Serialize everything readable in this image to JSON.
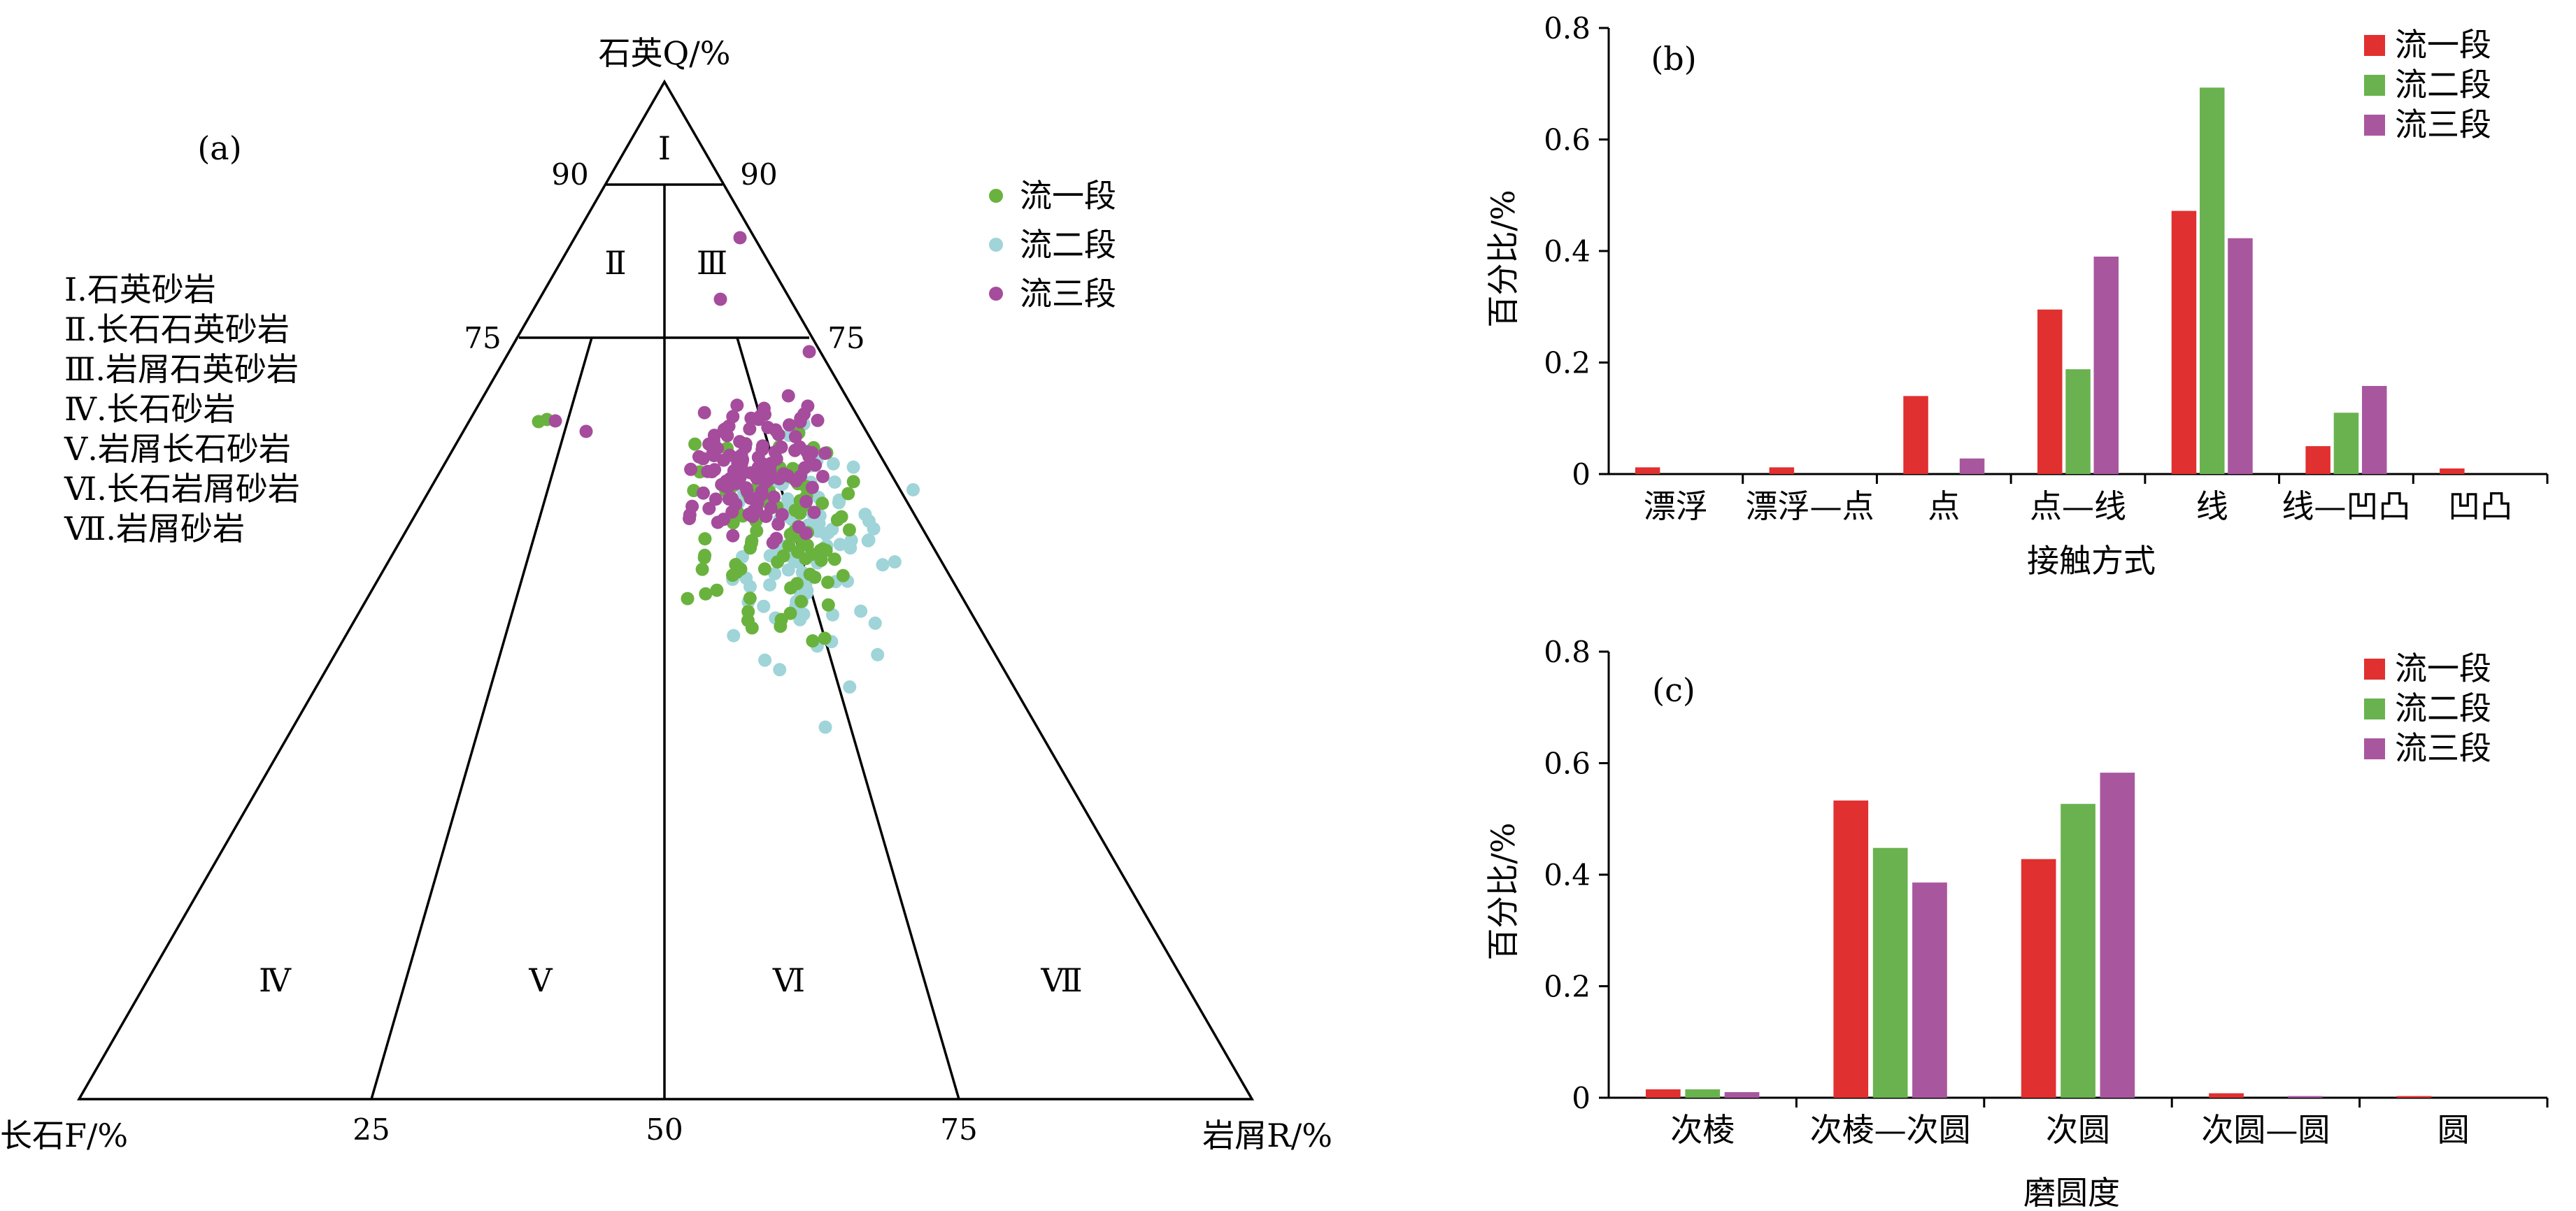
{
  "ternary": {
    "label": "(a)",
    "apex_top": "石英Q/%",
    "apex_left": "长石F/%",
    "apex_right": "岩屑R/%",
    "ticks": {
      "q90_left": "90",
      "q90_right": "90",
      "q75_left": "75",
      "q75_right": "75",
      "b25": "25",
      "b50": "50",
      "b75": "75"
    },
    "regions": [
      "Ⅰ",
      "Ⅱ",
      "Ⅲ",
      "Ⅳ",
      "Ⅴ",
      "Ⅵ",
      "Ⅶ"
    ],
    "classification_legend": [
      "Ⅰ.石英砂岩",
      "Ⅱ.长石石英砂岩",
      "Ⅲ.岩屑石英砂岩",
      "Ⅳ.长石砂岩",
      "Ⅴ.岩屑长石砂岩",
      "Ⅵ.长石岩屑砂岩",
      "Ⅶ.岩屑砂岩"
    ],
    "legend": [
      "流一段",
      "流二段",
      "流三段"
    ],
    "colors": {
      "s1": "#6ab23e",
      "s2": "#9fd4d8",
      "s3": "#a54c9c"
    }
  },
  "chart_data": [
    {
      "type": "bar",
      "panel": "(b)",
      "categories": [
        "漂浮",
        "漂浮—点",
        "点",
        "点—线",
        "线",
        "线—凹凸",
        "凹凸"
      ],
      "series": [
        {
          "name": "流一段",
          "color": "#e03030",
          "values": [
            0.012,
            0.012,
            0.14,
            0.295,
            0.472,
            0.05,
            0.01
          ]
        },
        {
          "name": "流二段",
          "color": "#6ab24f",
          "values": [
            0,
            0,
            0,
            0.188,
            0.693,
            0.11,
            0
          ]
        },
        {
          "name": "流三段",
          "color": "#a8579f",
          "values": [
            0,
            0,
            0.028,
            0.39,
            0.423,
            0.158,
            0
          ]
        }
      ],
      "xlabel": "接触方式",
      "ylabel": "百分比/%",
      "ylim": [
        0,
        0.8
      ],
      "yticks": [
        "0",
        "0.2",
        "0.4",
        "0.6",
        "0.8"
      ],
      "legend": "top-right"
    },
    {
      "type": "bar",
      "panel": "(c)",
      "categories": [
        "次棱",
        "次棱—次圆",
        "次圆",
        "次圆—圆",
        "圆"
      ],
      "series": [
        {
          "name": "流一段",
          "color": "#e03030",
          "values": [
            0.015,
            0.533,
            0.428,
            0.008,
            0.003
          ]
        },
        {
          "name": "流二段",
          "color": "#6ab24f",
          "values": [
            0.015,
            0.448,
            0.527,
            0,
            0
          ]
        },
        {
          "name": "流三段",
          "color": "#a8579f",
          "values": [
            0.01,
            0.386,
            0.583,
            0.003,
            0
          ]
        }
      ],
      "xlabel": "磨圆度",
      "ylabel": "百分比/%",
      "ylim": [
        0,
        0.8
      ],
      "yticks": [
        "0",
        "0.2",
        "0.4",
        "0.6",
        "0.8"
      ],
      "legend": "top-right"
    }
  ]
}
